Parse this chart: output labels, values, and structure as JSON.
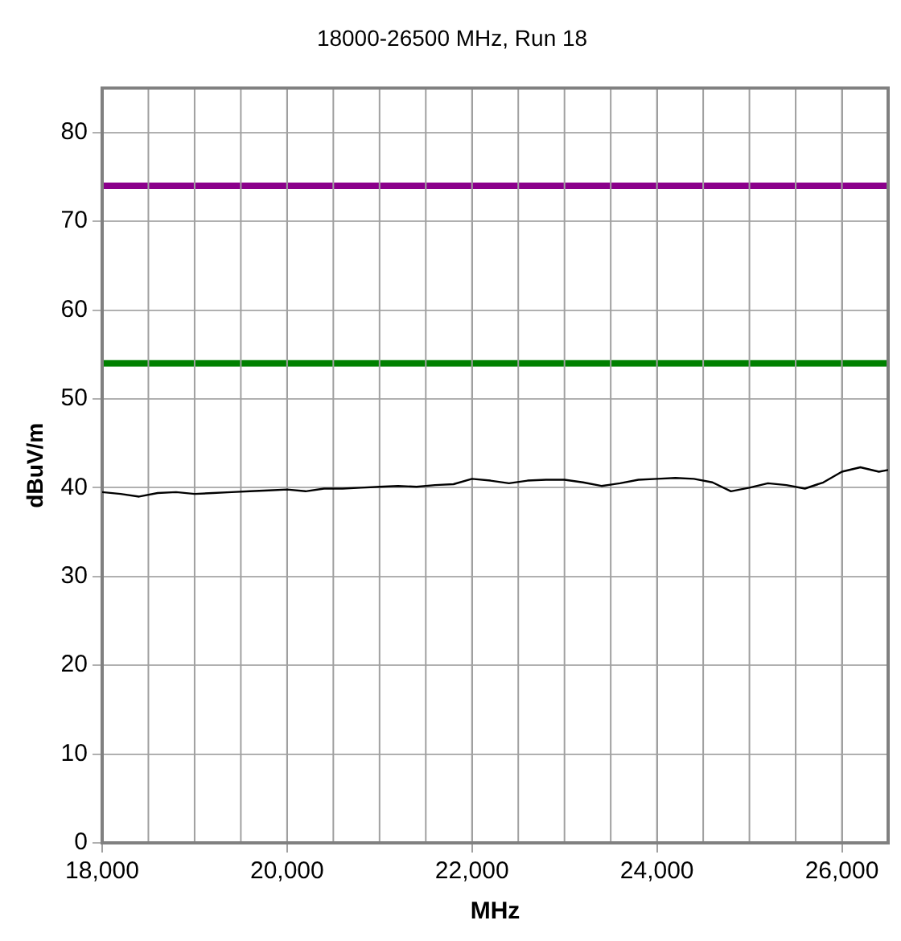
{
  "chart_data": {
    "type": "line",
    "title": "18000-26500 MHz, Run 18",
    "xlabel": "MHz",
    "ylabel": "dBuV/m",
    "xlim": [
      18000,
      26500
    ],
    "xticks": [
      {
        "value": 18000,
        "label": "18,000"
      },
      {
        "value": 20000,
        "label": "20,000"
      },
      {
        "value": 22000,
        "label": "22,000"
      },
      {
        "value": 24000,
        "label": "24,000"
      },
      {
        "value": 26000,
        "label": "26,000"
      }
    ],
    "ylim": [
      0,
      85
    ],
    "yticks": [
      0,
      10,
      20,
      30,
      40,
      50,
      60,
      70,
      80
    ],
    "grid": true,
    "legend": false,
    "marker": "none",
    "series": [
      {
        "color": "#000000",
        "x": [
          18000,
          18200,
          18400,
          18600,
          18800,
          19000,
          19200,
          19400,
          19600,
          19800,
          20000,
          20200,
          20400,
          20600,
          20800,
          21000,
          21200,
          21400,
          21600,
          21800,
          22000,
          22200,
          22400,
          22600,
          22800,
          23000,
          23200,
          23400,
          23600,
          23800,
          24000,
          24200,
          24400,
          24600,
          24800,
          25000,
          25200,
          25400,
          25600,
          25800,
          26000,
          26200,
          26400,
          26500
        ],
        "values": [
          39.5,
          39.3,
          39,
          39.4,
          39.5,
          39.3,
          39.4,
          39.5,
          39.6,
          39.7,
          39.8,
          39.6,
          39.9,
          39.9,
          40,
          40.1,
          40.2,
          40.1,
          40.3,
          40.4,
          41,
          40.8,
          40.5,
          40.8,
          40.9,
          40.9,
          40.6,
          40.2,
          40.5,
          40.9,
          41,
          41.1,
          41,
          40.6,
          39.6,
          40,
          40.5,
          40.3,
          39.9,
          40.6,
          41.8,
          42.3,
          41.8,
          42
        ]
      }
    ],
    "ref_lines": [
      {
        "axis": "y",
        "value": 74,
        "color": "#8b008b"
      },
      {
        "axis": "y",
        "value": 54,
        "color": "#008000"
      }
    ]
  }
}
